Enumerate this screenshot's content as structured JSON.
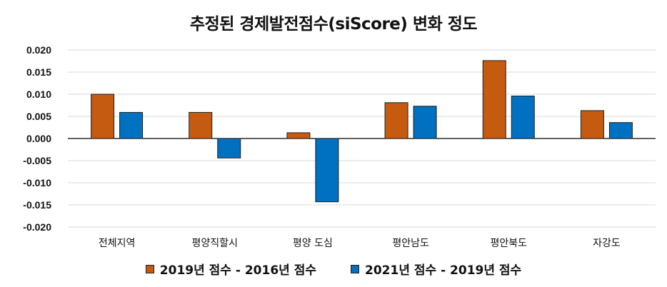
{
  "chart_data": {
    "type": "bar",
    "title": "추정된 경제발전점수(siScore) 변화 정도",
    "xlabel": "",
    "ylabel": "",
    "categories": [
      "전체지역",
      "평양직할시",
      "평양 도심",
      "평안남도",
      "평안북도",
      "자강도"
    ],
    "series": [
      {
        "name": "2019년 점수 - 2016년 점수",
        "color": "#C55A11",
        "values": [
          0.01,
          0.0059,
          0.0013,
          0.0081,
          0.0176,
          0.0063
        ]
      },
      {
        "name": "2021년 점수 - 2019년 점수",
        "color": "#0070C0",
        "values": [
          0.0059,
          -0.0044,
          -0.0143,
          0.0073,
          0.0096,
          0.0036
        ]
      }
    ],
    "ylim": [
      -0.02,
      0.02
    ],
    "yticks": [
      "0.020",
      "0.015",
      "0.010",
      "0.005",
      "0.000",
      "-0.005",
      "-0.010",
      "-0.015",
      "-0.020"
    ],
    "ytick_values": [
      0.02,
      0.015,
      0.01,
      0.005,
      0.0,
      -0.005,
      -0.01,
      -0.015,
      -0.02
    ],
    "grid": true,
    "legend_position": "bottom"
  }
}
